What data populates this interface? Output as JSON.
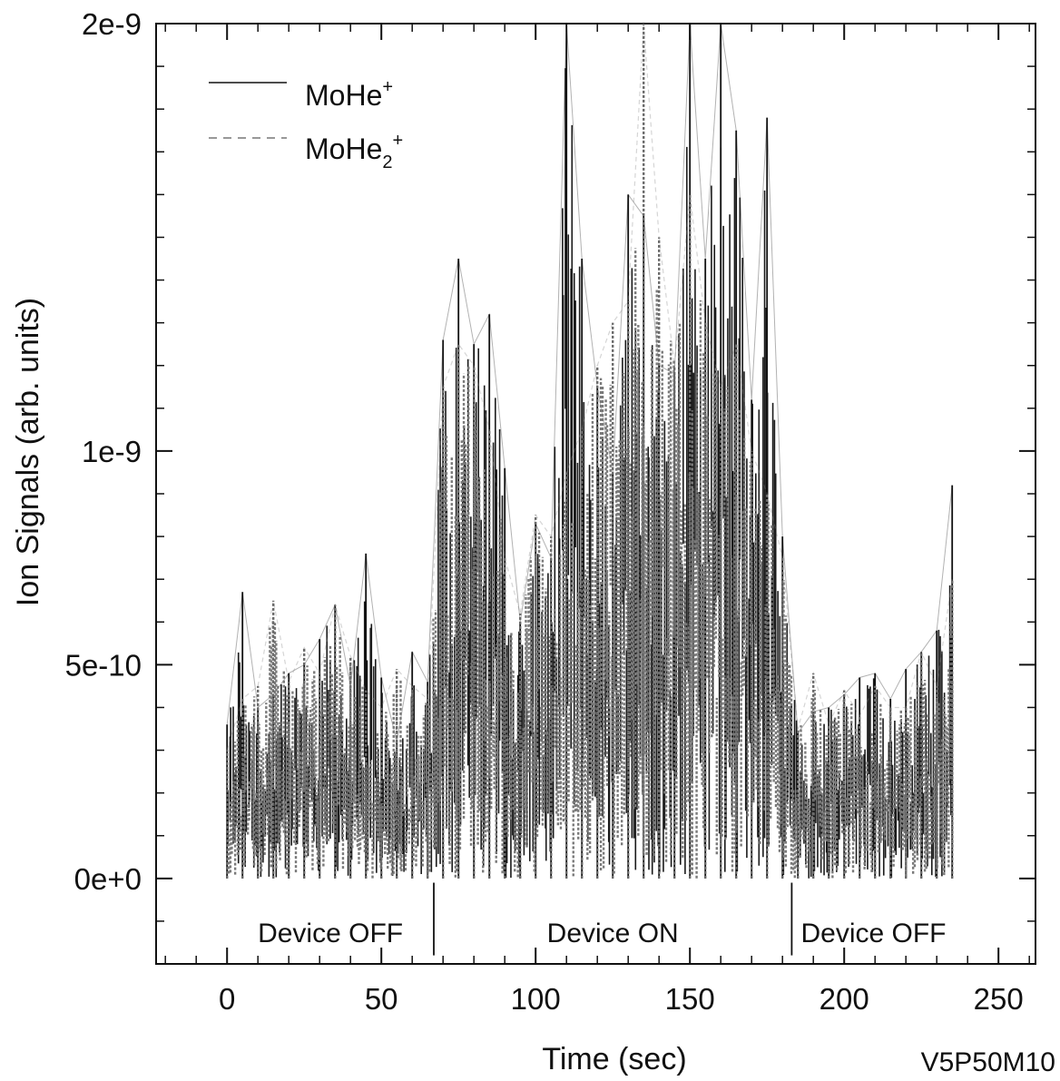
{
  "chart_data": {
    "type": "line",
    "title": "",
    "xlabel": "Time (sec)",
    "ylabel": "Ion Signals (arb. units)",
    "xlim": [
      -23,
      262
    ],
    "ylim": [
      -2e-10,
      2e-09
    ],
    "x_ticks": [
      0,
      50,
      100,
      150,
      200,
      250
    ],
    "x_tick_labels": [
      "0",
      "50",
      "100",
      "150",
      "200",
      "250"
    ],
    "y_ticks": [
      0,
      5e-10,
      1e-09,
      2e-09
    ],
    "y_tick_labels": [
      "0e+0",
      "5e-10",
      "1e-9",
      "2e-9"
    ],
    "grid": false,
    "legend_position": "top-left",
    "legend": [
      {
        "base": "MoHe",
        "sub": "",
        "sup": "+",
        "style": "solid"
      },
      {
        "base": "MoHe",
        "sub": "2",
        "sup": "+",
        "style": "dashed"
      }
    ],
    "regions": [
      {
        "label": "Device OFF",
        "x_start": 0,
        "x_end": 67
      },
      {
        "label": "Device ON",
        "x_start": 67,
        "x_end": 183
      },
      {
        "label": "Device OFF",
        "x_start": 183,
        "x_end": 236
      }
    ],
    "region_dividers_x": [
      67,
      183
    ],
    "series": [
      {
        "name": "MoHe+",
        "style": "solid",
        "x": [
          0,
          5,
          10,
          15,
          20,
          25,
          30,
          35,
          40,
          45,
          50,
          55,
          60,
          65,
          70,
          75,
          80,
          85,
          90,
          95,
          100,
          105,
          110,
          115,
          120,
          125,
          130,
          135,
          140,
          145,
          150,
          155,
          160,
          165,
          170,
          175,
          180,
          185,
          190,
          195,
          200,
          205,
          210,
          215,
          220,
          225,
          230,
          235
        ],
        "y": [
          3.6e-10,
          6.7e-10,
          4e-10,
          4.3e-10,
          4.8e-10,
          5e-10,
          5.6e-10,
          6.4e-10,
          4.5e-10,
          7.6e-10,
          4.7e-10,
          3.2e-10,
          5.3e-10,
          4.6e-10,
          1.26e-09,
          1.45e-09,
          1.25e-09,
          1.32e-09,
          9.6e-10,
          6e-10,
          8.3e-10,
          7.5e-10,
          2e-09,
          1.45e-09,
          1.15e-09,
          9.5e-10,
          1.6e-09,
          1.55e-09,
          1.2e-09,
          1.18e-09,
          2e-09,
          1.45e-09,
          2e-09,
          1.75e-09,
          1.12e-09,
          1.78e-09,
          8e-10,
          3.4e-10,
          3.9e-10,
          4e-10,
          4.3e-10,
          4.7e-10,
          4.8e-10,
          4.2e-10,
          4.9e-10,
          5.3e-10,
          5.8e-10,
          9.2e-10
        ]
      },
      {
        "name": "MoHe2+",
        "style": "dashed",
        "x": [
          0,
          5,
          10,
          15,
          20,
          25,
          30,
          35,
          40,
          45,
          50,
          55,
          60,
          65,
          70,
          75,
          80,
          85,
          90,
          95,
          100,
          105,
          110,
          115,
          120,
          125,
          130,
          135,
          140,
          145,
          150,
          155,
          160,
          165,
          170,
          175,
          180,
          185,
          190,
          195,
          200,
          205,
          210,
          215,
          220,
          225,
          230,
          235
        ],
        "y": [
          3e-10,
          4.2e-10,
          4.5e-10,
          6.5e-10,
          4.6e-10,
          5.4e-10,
          4.8e-10,
          6.4e-10,
          5.2e-10,
          4.4e-10,
          4e-10,
          4.9e-10,
          4.5e-10,
          4.2e-10,
          1.15e-09,
          1.25e-09,
          1.2e-09,
          1.05e-09,
          7.5e-10,
          6.2e-10,
          8.5e-10,
          8e-10,
          9.5e-10,
          1.05e-09,
          1.2e-09,
          1.3e-09,
          1.35e-09,
          2e-09,
          1.5e-09,
          1.2e-09,
          1.6e-09,
          1.3e-09,
          1.15e-09,
          1.25e-09,
          1e-09,
          9e-10,
          7.5e-10,
          3.5e-10,
          4.8e-10,
          3.6e-10,
          4.4e-10,
          3.8e-10,
          4.5e-10,
          4e-10,
          4e-10,
          5.3e-10,
          4.5e-10,
          7e-10
        ]
      }
    ]
  },
  "plot_code": "V5P50M10"
}
